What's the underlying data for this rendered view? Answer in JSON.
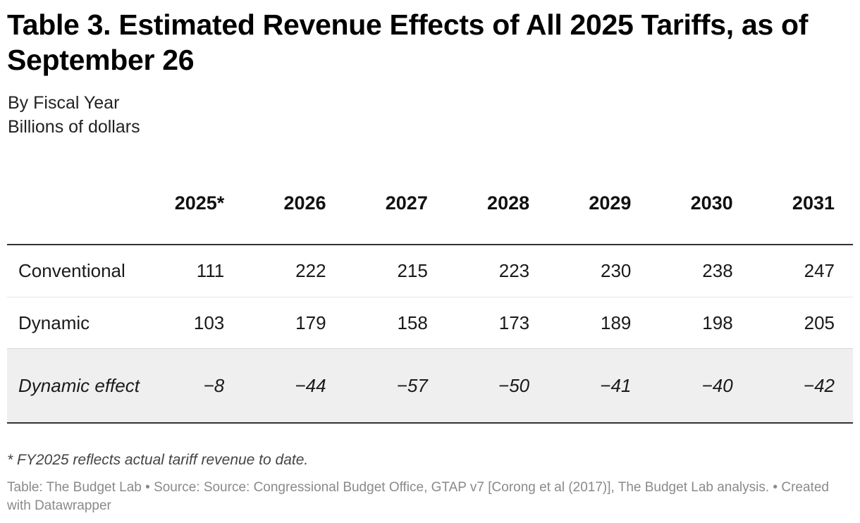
{
  "title": "Table 3. Estimated Revenue Effects of All 2025 Tariffs, as of September 26",
  "subtitle_1": "By Fiscal Year",
  "subtitle_2": "Billions of dollars",
  "chart_data": {
    "type": "table",
    "title": "Table 3. Estimated Revenue Effects of All 2025 Tariffs, as of September 26",
    "units": "Billions of dollars",
    "columns": [
      "2025*",
      "2026",
      "2027",
      "2028",
      "2029",
      "2030",
      "2031"
    ],
    "rows": [
      {
        "label": "Conventional",
        "values": [
          "111",
          "222",
          "215",
          "223",
          "230",
          "238",
          "247"
        ]
      },
      {
        "label": "Dynamic",
        "values": [
          "103",
          "179",
          "158",
          "173",
          "189",
          "198",
          "205"
        ]
      },
      {
        "label": "Dynamic effect",
        "values": [
          "−8",
          "−44",
          "−57",
          "−50",
          "−41",
          "−40",
          "−42"
        ]
      }
    ]
  },
  "footnote": "* FY2025 reflects actual tariff revenue to date.",
  "source": "Table: The Budget Lab • Source: Source: Congressional Budget Office, GTAP v7 [Corong et al (2017)], The Budget Lab analysis. • Created with Datawrapper",
  "colors": {
    "highlight_row": "#efefef",
    "rule": "#333333",
    "source_text": "#8a8a8a"
  }
}
